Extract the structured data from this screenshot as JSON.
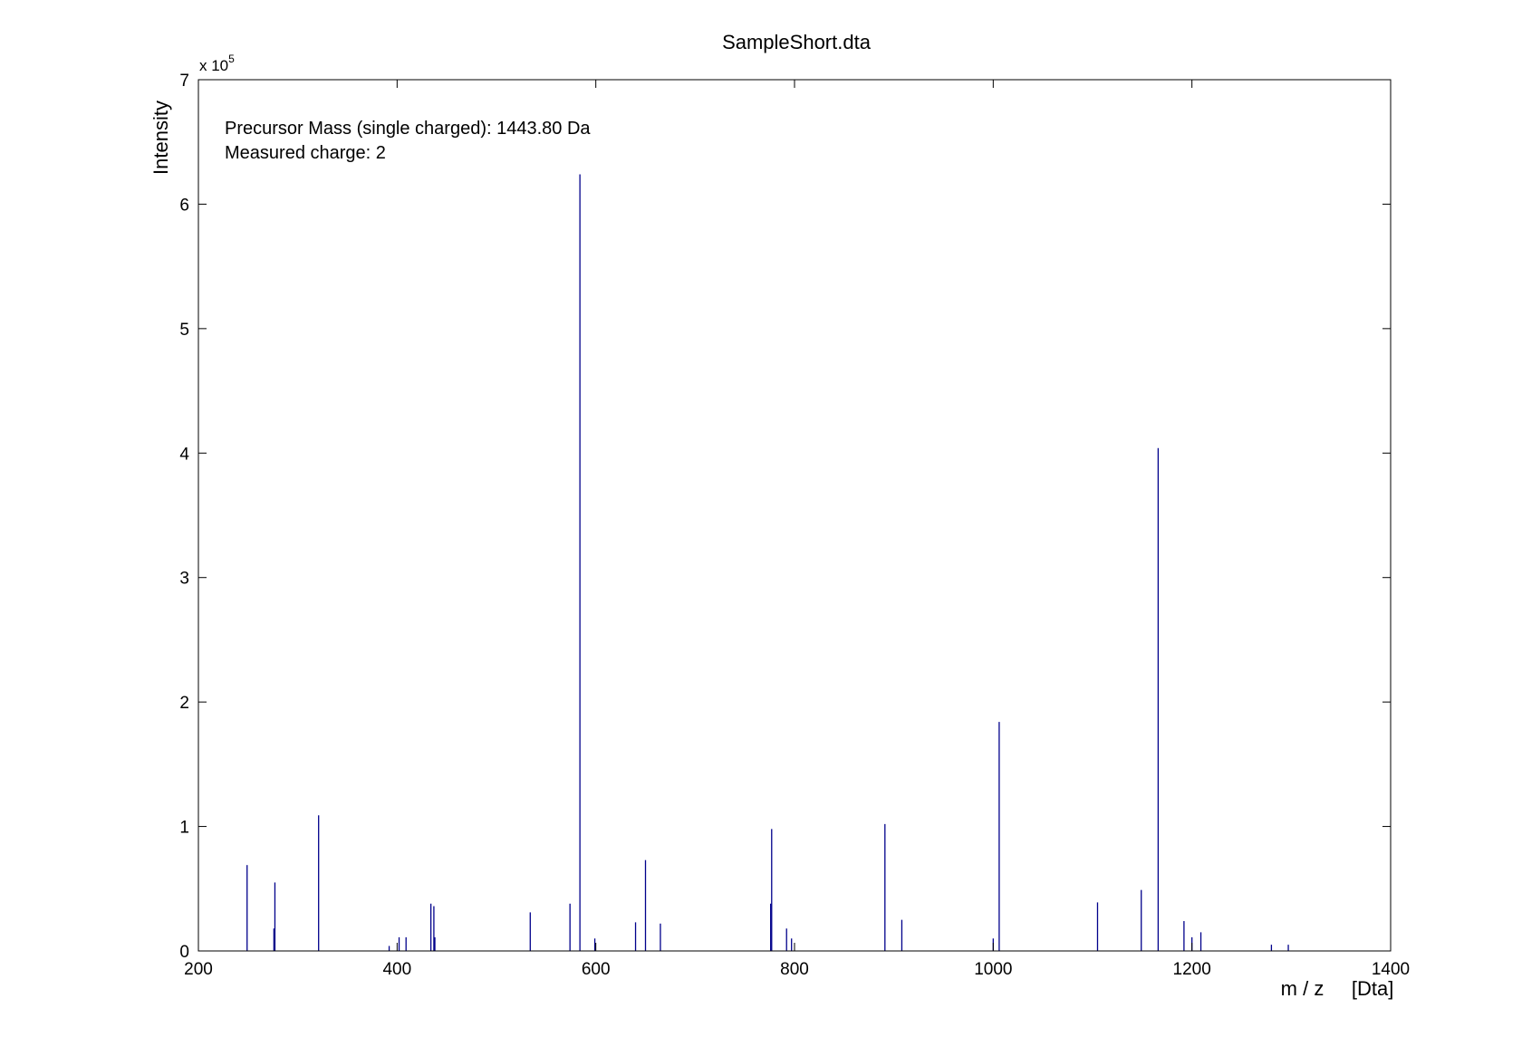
{
  "chart_data": {
    "type": "bar",
    "title": "SampleShort.dta",
    "xlabel": "m / z     [Dta]",
    "ylabel": "Intensity",
    "xlim": [
      200,
      1400
    ],
    "ylim": [
      0,
      700000
    ],
    "x_ticks": [
      200,
      400,
      600,
      800,
      1000,
      1200,
      1400
    ],
    "y_ticks": [
      0,
      1,
      2,
      3,
      4,
      5,
      6,
      7
    ],
    "y_multiplier_base": "x 10",
    "y_multiplier_exp": "5",
    "grid": false,
    "annotations": [
      "Precursor Mass (single charged): 1443.80 Da",
      "Measured charge: 2"
    ],
    "series_color": "#00008b",
    "peaks": [
      {
        "x": 249,
        "y": 69000
      },
      {
        "x": 276,
        "y": 18000
      },
      {
        "x": 277,
        "y": 55000
      },
      {
        "x": 321,
        "y": 109000
      },
      {
        "x": 392,
        "y": 4000
      },
      {
        "x": 402,
        "y": 11000
      },
      {
        "x": 409,
        "y": 11000
      },
      {
        "x": 434,
        "y": 38000
      },
      {
        "x": 437,
        "y": 36000
      },
      {
        "x": 438,
        "y": 11000
      },
      {
        "x": 534,
        "y": 31000
      },
      {
        "x": 574,
        "y": 38000
      },
      {
        "x": 584,
        "y": 624000
      },
      {
        "x": 599,
        "y": 10000
      },
      {
        "x": 640,
        "y": 23000
      },
      {
        "x": 650,
        "y": 73000
      },
      {
        "x": 665,
        "y": 22000
      },
      {
        "x": 776,
        "y": 38000
      },
      {
        "x": 777,
        "y": 98000
      },
      {
        "x": 792,
        "y": 18000
      },
      {
        "x": 797,
        "y": 10000
      },
      {
        "x": 891,
        "y": 102000
      },
      {
        "x": 908,
        "y": 25000
      },
      {
        "x": 1000,
        "y": 10000
      },
      {
        "x": 1006,
        "y": 184000
      },
      {
        "x": 1105,
        "y": 39000
      },
      {
        "x": 1149,
        "y": 49000
      },
      {
        "x": 1166,
        "y": 404000
      },
      {
        "x": 1192,
        "y": 24000
      },
      {
        "x": 1200,
        "y": 11000
      },
      {
        "x": 1209,
        "y": 15000
      },
      {
        "x": 1280,
        "y": 5000
      },
      {
        "x": 1297,
        "y": 5000
      }
    ]
  }
}
